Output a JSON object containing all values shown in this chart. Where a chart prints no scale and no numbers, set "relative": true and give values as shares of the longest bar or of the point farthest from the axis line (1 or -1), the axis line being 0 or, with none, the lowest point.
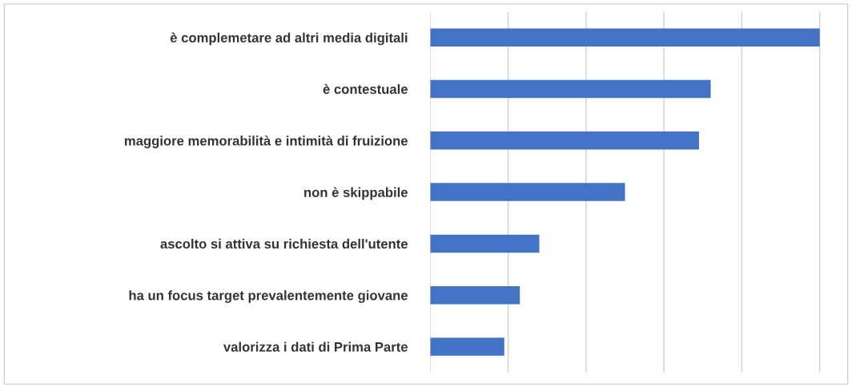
{
  "chart_data": {
    "type": "bar",
    "orientation": "horizontal",
    "relative": true,
    "grid": "x",
    "color": "#4472c4",
    "categories": [
      "è complemetare ad altri media digitali",
      "è contestuale",
      "maggiore memorabilità e intimità di fruizione",
      "non è skippabile",
      "ascolto si attiva su richiesta dell'utente",
      "ha un focus target prevalentemente giovane",
      "valorizza i dati di Prima Parte"
    ],
    "values": [
      1,
      0.72,
      0.69,
      0.5,
      0.28,
      0.23,
      0.19
    ]
  }
}
